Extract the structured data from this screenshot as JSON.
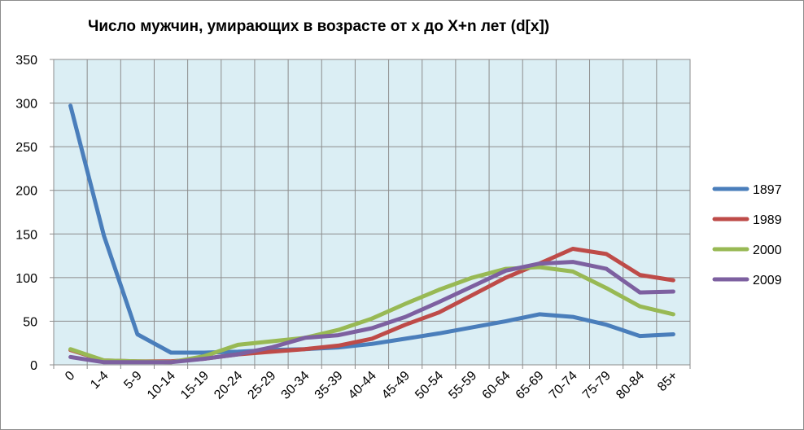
{
  "chart_data": {
    "type": "line",
    "title": "Число мужчин, умирающих в возрасте от x до X+n лет  (d[x])",
    "xlabel": "",
    "ylabel": "",
    "categories": [
      "0",
      "1-4",
      "5-9",
      "10-14",
      "15-19",
      "20-24",
      "25-29",
      "30-34",
      "35-39",
      "40-44",
      "45-49",
      "50-54",
      "55-59",
      "60-64",
      "65-69",
      "70-74",
      "75-79",
      "80-84",
      "85+"
    ],
    "ylim": [
      0,
      350
    ],
    "yticks": [
      0,
      50,
      100,
      150,
      200,
      250,
      300,
      350
    ],
    "grid": true,
    "legend_position": "right",
    "plot_background": "#dbeef4",
    "series": [
      {
        "name": "1897",
        "color": "#4a7ebb",
        "values": [
          297,
          148,
          35,
          14,
          14,
          15,
          17,
          18,
          20,
          24,
          30,
          36,
          43,
          50,
          58,
          55,
          46,
          33,
          35
        ]
      },
      {
        "name": "1989",
        "color": "#be4b48",
        "values": [
          17,
          5,
          4,
          4,
          7,
          12,
          15,
          18,
          22,
          30,
          46,
          60,
          80,
          100,
          116,
          133,
          127,
          103,
          97
        ]
      },
      {
        "name": "2000",
        "color": "#98b954",
        "values": [
          18,
          5,
          4,
          3,
          10,
          23,
          27,
          31,
          40,
          53,
          70,
          86,
          100,
          110,
          112,
          107,
          88,
          67,
          58
        ]
      },
      {
        "name": "2009",
        "color": "#7d60a0",
        "values": [
          9,
          3,
          3,
          3,
          7,
          12,
          20,
          31,
          34,
          42,
          55,
          72,
          90,
          108,
          116,
          118,
          110,
          83,
          84
        ]
      }
    ]
  }
}
